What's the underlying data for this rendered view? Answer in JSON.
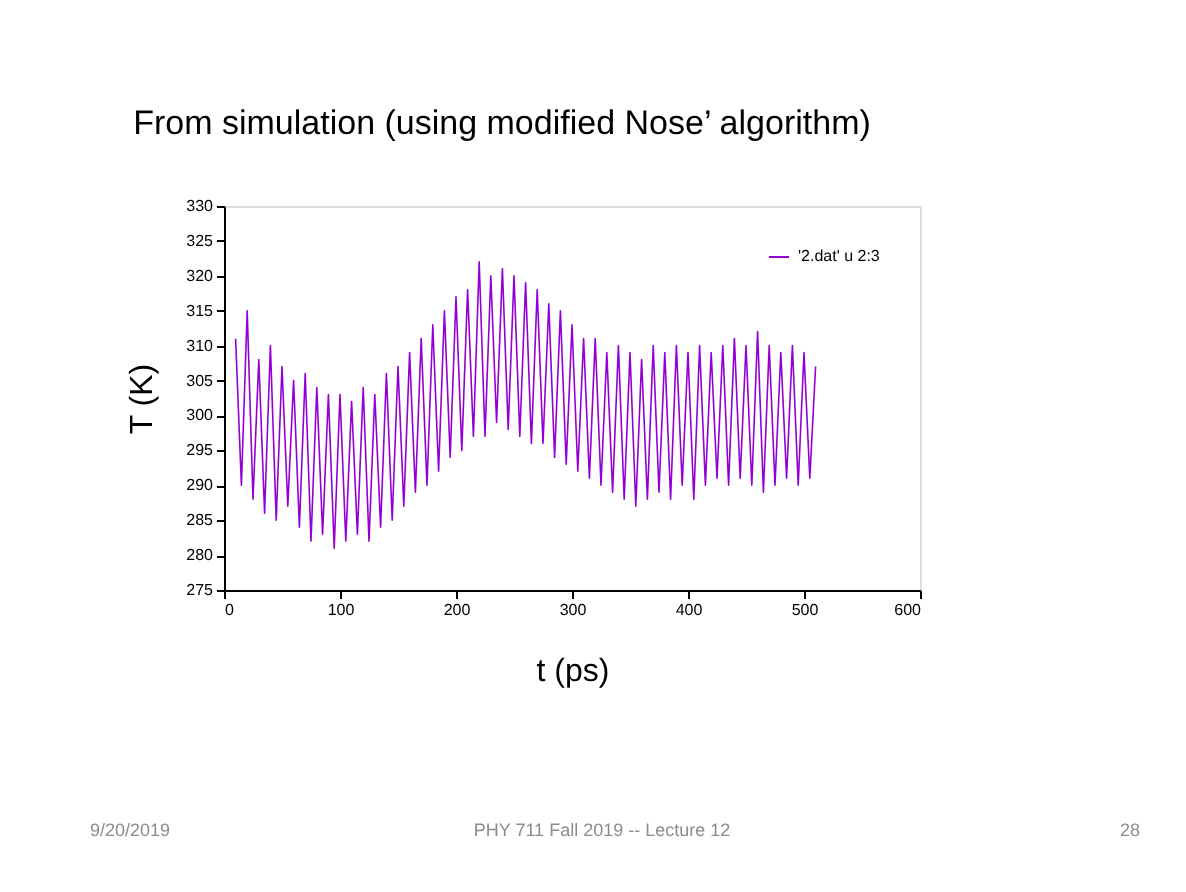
{
  "chart_data": {
    "type": "line",
    "title": "From simulation (using modified Nose’ algorithm)",
    "xlabel": "t (ps)",
    "ylabel": "T (K)",
    "x": [
      10,
      15,
      20,
      25,
      30,
      35,
      40,
      45,
      50,
      55,
      60,
      65,
      70,
      75,
      80,
      85,
      90,
      95,
      100,
      105,
      110,
      115,
      120,
      125,
      130,
      135,
      140,
      145,
      150,
      155,
      160,
      165,
      170,
      175,
      180,
      185,
      190,
      195,
      200,
      205,
      210,
      215,
      220,
      225,
      230,
      235,
      240,
      245,
      250,
      255,
      260,
      265,
      270,
      275,
      280,
      285,
      290,
      295,
      300,
      305,
      310,
      315,
      320,
      325,
      330,
      335,
      340,
      345,
      350,
      355,
      360,
      365,
      370,
      375,
      380,
      385,
      390,
      395,
      400,
      405,
      410,
      415,
      420,
      425,
      430,
      435,
      440,
      445,
      450,
      455,
      460,
      465,
      470,
      475,
      480,
      485,
      490,
      495,
      500,
      505,
      510
    ],
    "series": [
      {
        "name": "'2.dat' u 2:3",
        "color": "#9400d3",
        "values": [
          311,
          290,
          315,
          288,
          308,
          286,
          310,
          285,
          307,
          287,
          305,
          284,
          306,
          282,
          304,
          283,
          303,
          281,
          303,
          282,
          302,
          283,
          304,
          282,
          303,
          284,
          306,
          285,
          307,
          287,
          309,
          289,
          311,
          290,
          313,
          292,
          315,
          294,
          317,
          295,
          318,
          297,
          322,
          297,
          320,
          299,
          321,
          298,
          320,
          297,
          319,
          296,
          318,
          296,
          316,
          294,
          315,
          293,
          313,
          292,
          311,
          291,
          311,
          290,
          309,
          289,
          310,
          288,
          309,
          287,
          308,
          288,
          310,
          289,
          309,
          288,
          310,
          290,
          309,
          288,
          310,
          290,
          309,
          291,
          310,
          290,
          311,
          291,
          310,
          290,
          312,
          289,
          310,
          290,
          309,
          291,
          310,
          290,
          309,
          291,
          307
        ]
      }
    ],
    "xlim": [
      0,
      600
    ],
    "xticks": [
      0,
      100,
      200,
      300,
      400,
      500,
      600
    ],
    "ylim": [
      275,
      330
    ],
    "yticks": [
      275,
      280,
      285,
      290,
      295,
      300,
      305,
      310,
      315,
      320,
      325,
      330
    ],
    "grid": false,
    "legend": "top right",
    "marker": "none",
    "line_style": "solid",
    "annotations": [
      "9/20/2019",
      "PHY 711  Fall 2019 -- Lecture 12",
      "28"
    ]
  }
}
